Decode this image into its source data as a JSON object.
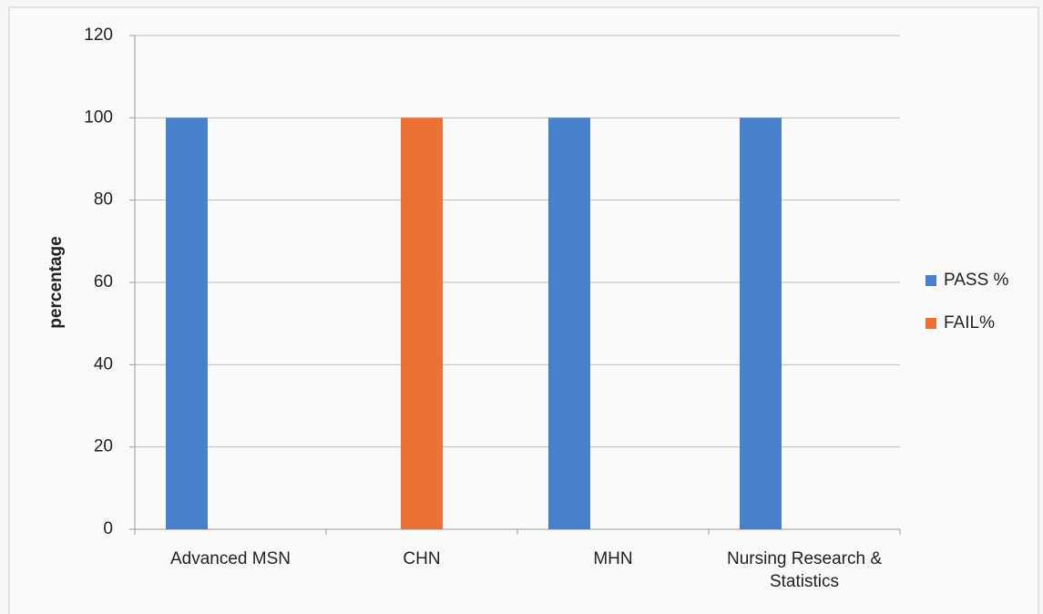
{
  "chart_data": {
    "type": "bar",
    "categories": [
      "Advanced MSN",
      "CHN",
      "MHN",
      "Nursing Research & Statistics"
    ],
    "series": [
      {
        "name": "PASS %",
        "color": "#4a7fc9",
        "values": [
          100,
          0,
          100,
          100
        ]
      },
      {
        "name": "FAIL%",
        "color": "#ea7035",
        "values": [
          0,
          100,
          0,
          0
        ]
      }
    ],
    "y_label": "percentage",
    "ylim": [
      0,
      120
    ],
    "yticks": [
      0,
      20,
      40,
      60,
      80,
      100,
      120
    ],
    "grid": true,
    "legend": "right"
  }
}
